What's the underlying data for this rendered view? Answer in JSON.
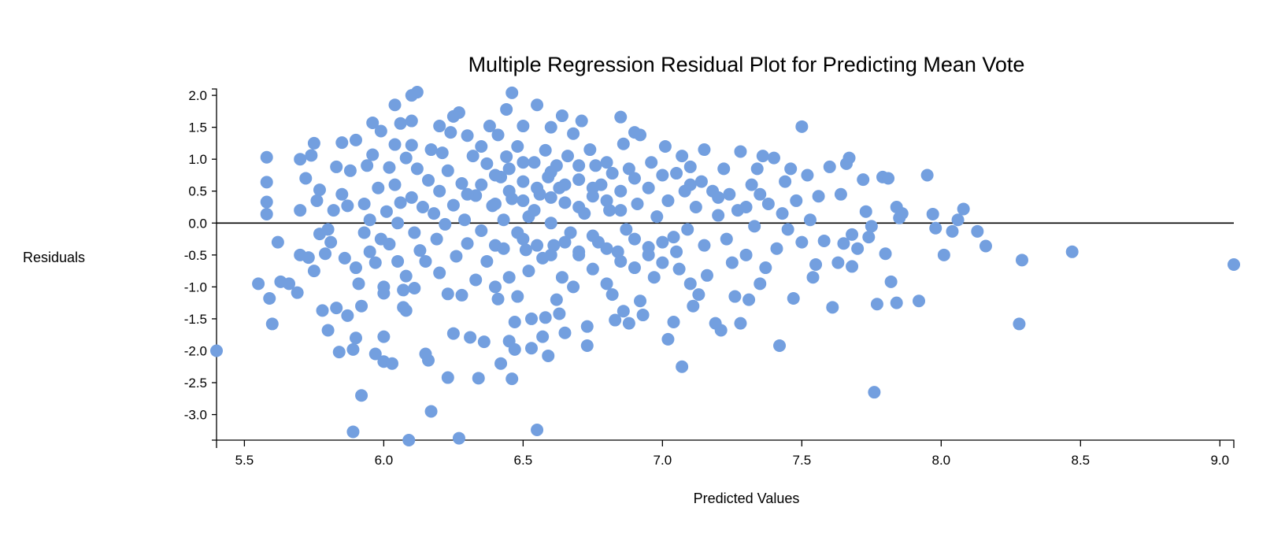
{
  "chart_data": {
    "type": "scatter",
    "title": "Multiple Regression Residual Plot for Predicting Mean Vote",
    "xlabel": "Predicted Values",
    "ylabel": "Residuals",
    "xlim": [
      5.4,
      9.05
    ],
    "ylim": [
      -3.4,
      2.1
    ],
    "x_ticks": [
      "5.5",
      "6.0",
      "6.5",
      "7.0",
      "7.5",
      "8.0",
      "8.5",
      "9.0"
    ],
    "y_ticks": [
      "2.0",
      "1.5",
      "1.0",
      "0.5",
      "0.0",
      "-0.5",
      "-1.0",
      "-1.5",
      "-2.0",
      "-2.5",
      "-3.0"
    ],
    "reference_line": 0,
    "grid": false,
    "point_color": "#739fdf",
    "points": [
      [
        5.4,
        -2.0
      ],
      [
        5.55,
        -0.95
      ],
      [
        5.58,
        1.03
      ],
      [
        5.58,
        0.64
      ],
      [
        5.58,
        0.33
      ],
      [
        5.58,
        0.14
      ],
      [
        5.59,
        -1.18
      ],
      [
        5.6,
        -1.58
      ],
      [
        5.62,
        -0.3
      ],
      [
        5.63,
        -0.92
      ],
      [
        5.66,
        -0.95
      ],
      [
        5.69,
        -1.09
      ],
      [
        5.7,
        1.0
      ],
      [
        5.7,
        0.2
      ],
      [
        5.7,
        -0.5
      ],
      [
        5.72,
        0.7
      ],
      [
        5.73,
        -0.54
      ],
      [
        5.74,
        1.06
      ],
      [
        5.75,
        1.25
      ],
      [
        5.75,
        -0.75
      ],
      [
        5.76,
        0.35
      ],
      [
        5.77,
        0.52
      ],
      [
        5.77,
        -0.17
      ],
      [
        5.78,
        -1.37
      ],
      [
        5.79,
        -0.48
      ],
      [
        5.8,
        -1.68
      ],
      [
        5.8,
        -0.1
      ],
      [
        5.81,
        -0.3
      ],
      [
        5.82,
        0.2
      ],
      [
        5.83,
        0.88
      ],
      [
        5.83,
        -1.33
      ],
      [
        5.84,
        -2.02
      ],
      [
        5.85,
        1.26
      ],
      [
        5.85,
        0.45
      ],
      [
        5.86,
        -0.55
      ],
      [
        5.87,
        0.27
      ],
      [
        5.87,
        -1.45
      ],
      [
        5.88,
        0.82
      ],
      [
        5.89,
        -3.27
      ],
      [
        5.89,
        -1.98
      ],
      [
        5.9,
        1.3
      ],
      [
        5.9,
        -0.7
      ],
      [
        5.9,
        -1.8
      ],
      [
        5.91,
        -0.95
      ],
      [
        5.92,
        -1.3
      ],
      [
        5.92,
        -2.7
      ],
      [
        5.93,
        0.3
      ],
      [
        5.93,
        -0.15
      ],
      [
        5.94,
        0.9
      ],
      [
        5.95,
        0.05
      ],
      [
        5.95,
        -0.45
      ],
      [
        5.96,
        1.57
      ],
      [
        5.96,
        1.07
      ],
      [
        5.97,
        -2.05
      ],
      [
        5.97,
        -0.62
      ],
      [
        5.98,
        0.55
      ],
      [
        5.99,
        1.44
      ],
      [
        5.99,
        -0.25
      ],
      [
        6.0,
        -1.0
      ],
      [
        6.0,
        -1.1
      ],
      [
        6.0,
        -1.78
      ],
      [
        6.0,
        -2.17
      ],
      [
        6.01,
        0.18
      ],
      [
        6.02,
        0.87
      ],
      [
        6.02,
        -0.33
      ],
      [
        6.03,
        -2.2
      ],
      [
        6.04,
        1.85
      ],
      [
        6.04,
        1.23
      ],
      [
        6.04,
        0.6
      ],
      [
        6.05,
        0.0
      ],
      [
        6.05,
        -0.6
      ],
      [
        6.06,
        1.56
      ],
      [
        6.06,
        0.32
      ],
      [
        6.07,
        -1.05
      ],
      [
        6.07,
        -1.32
      ],
      [
        6.08,
        1.02
      ],
      [
        6.08,
        -0.83
      ],
      [
        6.08,
        -1.37
      ],
      [
        6.09,
        -3.4
      ],
      [
        6.1,
        2.0
      ],
      [
        6.1,
        1.6
      ],
      [
        6.1,
        1.22
      ],
      [
        6.1,
        0.4
      ],
      [
        6.11,
        -0.15
      ],
      [
        6.11,
        -1.02
      ],
      [
        6.12,
        2.05
      ],
      [
        6.12,
        0.85
      ],
      [
        6.13,
        -0.43
      ],
      [
        6.14,
        0.25
      ],
      [
        6.15,
        -0.6
      ],
      [
        6.15,
        -2.05
      ],
      [
        6.16,
        0.67
      ],
      [
        6.16,
        -2.15
      ],
      [
        6.17,
        1.15
      ],
      [
        6.17,
        -2.95
      ],
      [
        6.18,
        0.15
      ],
      [
        6.19,
        -0.25
      ],
      [
        6.2,
        1.52
      ],
      [
        6.2,
        0.5
      ],
      [
        6.2,
        -0.78
      ],
      [
        6.21,
        1.1
      ],
      [
        6.22,
        -0.02
      ],
      [
        6.23,
        0.82
      ],
      [
        6.23,
        -1.11
      ],
      [
        6.23,
        -2.42
      ],
      [
        6.24,
        1.42
      ],
      [
        6.25,
        1.67
      ],
      [
        6.25,
        0.28
      ],
      [
        6.25,
        -1.73
      ],
      [
        6.26,
        -0.52
      ],
      [
        6.27,
        1.73
      ],
      [
        6.27,
        -3.37
      ],
      [
        6.28,
        0.62
      ],
      [
        6.28,
        -1.13
      ],
      [
        6.29,
        0.05
      ],
      [
        6.3,
        1.37
      ],
      [
        6.3,
        -0.32
      ],
      [
        6.31,
        -1.79
      ],
      [
        6.32,
        1.05
      ],
      [
        6.33,
        0.43
      ],
      [
        6.33,
        -0.89
      ],
      [
        6.34,
        -2.43
      ],
      [
        6.35,
        1.2
      ],
      [
        6.35,
        -0.12
      ],
      [
        6.36,
        -1.86
      ],
      [
        6.37,
        0.93
      ],
      [
        6.37,
        -0.6
      ],
      [
        6.38,
        1.52
      ],
      [
        6.39,
        0.27
      ],
      [
        6.4,
        -0.35
      ],
      [
        6.4,
        -1.0
      ],
      [
        6.41,
        1.38
      ],
      [
        6.41,
        -1.19
      ],
      [
        6.42,
        0.72
      ],
      [
        6.42,
        -2.2
      ],
      [
        6.43,
        0.05
      ],
      [
        6.43,
        -0.4
      ],
      [
        6.44,
        1.78
      ],
      [
        6.44,
        1.04
      ],
      [
        6.45,
        -0.85
      ],
      [
        6.45,
        -1.85
      ],
      [
        6.46,
        2.04
      ],
      [
        6.46,
        0.38
      ],
      [
        6.46,
        -2.44
      ],
      [
        6.47,
        -1.55
      ],
      [
        6.47,
        -1.98
      ],
      [
        6.48,
        1.2
      ],
      [
        6.48,
        -0.15
      ],
      [
        6.48,
        -1.15
      ],
      [
        6.5,
        1.52
      ],
      [
        6.5,
        0.65
      ],
      [
        6.51,
        -0.42
      ],
      [
        6.52,
        0.1
      ],
      [
        6.52,
        -0.75
      ],
      [
        6.53,
        -1.5
      ],
      [
        6.53,
        -1.96
      ],
      [
        6.54,
        0.95
      ],
      [
        6.54,
        0.2
      ],
      [
        6.55,
        1.85
      ],
      [
        6.55,
        -3.24
      ],
      [
        6.56,
        0.45
      ],
      [
        6.57,
        -0.55
      ],
      [
        6.57,
        -1.78
      ],
      [
        6.58,
        1.14
      ],
      [
        6.58,
        -1.48
      ],
      [
        6.59,
        0.72
      ],
      [
        6.59,
        -2.08
      ],
      [
        6.6,
        1.5
      ],
      [
        6.6,
        0.0
      ],
      [
        6.61,
        -0.35
      ],
      [
        6.62,
        0.9
      ],
      [
        6.62,
        -1.2
      ],
      [
        6.63,
        0.55
      ],
      [
        6.63,
        -1.42
      ],
      [
        6.64,
        1.68
      ],
      [
        6.64,
        -0.85
      ],
      [
        6.65,
        0.32
      ],
      [
        6.65,
        -1.72
      ],
      [
        6.66,
        1.05
      ],
      [
        6.67,
        -0.15
      ],
      [
        6.68,
        1.4
      ],
      [
        6.68,
        -1.0
      ],
      [
        6.7,
        0.68
      ],
      [
        6.7,
        -0.5
      ],
      [
        6.71,
        1.6
      ],
      [
        6.72,
        0.15
      ],
      [
        6.73,
        -1.62
      ],
      [
        6.73,
        -1.92
      ],
      [
        6.74,
        1.15
      ],
      [
        6.75,
        0.42
      ],
      [
        6.75,
        -0.72
      ],
      [
        6.76,
        0.9
      ],
      [
        6.77,
        -0.3
      ],
      [
        6.78,
        0.6
      ],
      [
        6.8,
        -0.95
      ],
      [
        6.81,
        0.2
      ],
      [
        6.82,
        0.78
      ],
      [
        6.82,
        -1.12
      ],
      [
        6.83,
        -1.52
      ],
      [
        6.84,
        -0.45
      ],
      [
        6.85,
        1.66
      ],
      [
        6.85,
        0.5
      ],
      [
        6.86,
        1.24
      ],
      [
        6.86,
        -1.38
      ],
      [
        6.87,
        -0.1
      ],
      [
        6.88,
        0.85
      ],
      [
        6.88,
        -1.57
      ],
      [
        6.9,
        1.42
      ],
      [
        6.9,
        -0.7
      ],
      [
        6.91,
        0.3
      ],
      [
        6.92,
        1.38
      ],
      [
        6.92,
        -1.22
      ],
      [
        6.93,
        -1.44
      ],
      [
        6.95,
        0.55
      ],
      [
        6.95,
        -0.38
      ],
      [
        6.96,
        0.95
      ],
      [
        6.97,
        -0.85
      ],
      [
        6.98,
        0.1
      ],
      [
        7.0,
        -0.62
      ],
      [
        7.01,
        1.2
      ],
      [
        7.02,
        0.35
      ],
      [
        7.02,
        -1.82
      ],
      [
        7.04,
        -0.22
      ],
      [
        7.04,
        -1.55
      ],
      [
        7.05,
        0.78
      ],
      [
        7.06,
        -0.72
      ],
      [
        7.07,
        1.05
      ],
      [
        7.07,
        -2.25
      ],
      [
        7.08,
        0.5
      ],
      [
        7.09,
        -0.1
      ],
      [
        7.1,
        0.88
      ],
      [
        7.1,
        -0.95
      ],
      [
        7.11,
        -1.3
      ],
      [
        7.12,
        0.25
      ],
      [
        7.13,
        -1.12
      ],
      [
        7.14,
        0.65
      ],
      [
        7.15,
        1.15
      ],
      [
        7.15,
        -0.35
      ],
      [
        7.16,
        -0.82
      ],
      [
        7.18,
        0.5
      ],
      [
        7.19,
        -1.57
      ],
      [
        7.2,
        0.12
      ],
      [
        7.21,
        -1.68
      ],
      [
        7.22,
        0.85
      ],
      [
        7.23,
        -0.25
      ],
      [
        7.24,
        0.45
      ],
      [
        7.25,
        -0.62
      ],
      [
        7.26,
        -1.15
      ],
      [
        7.27,
        0.2
      ],
      [
        7.28,
        1.12
      ],
      [
        7.28,
        -1.57
      ],
      [
        7.3,
        -0.5
      ],
      [
        7.31,
        -1.2
      ],
      [
        7.32,
        0.6
      ],
      [
        7.33,
        -0.05
      ],
      [
        7.34,
        0.85
      ],
      [
        7.35,
        -0.95
      ],
      [
        7.36,
        1.05
      ],
      [
        7.37,
        -0.7
      ],
      [
        7.38,
        0.3
      ],
      [
        7.4,
        1.02
      ],
      [
        7.41,
        -0.4
      ],
      [
        7.42,
        -1.92
      ],
      [
        7.43,
        0.15
      ],
      [
        7.44,
        0.65
      ],
      [
        7.45,
        -0.1
      ],
      [
        7.46,
        0.85
      ],
      [
        7.47,
        -1.18
      ],
      [
        7.48,
        0.35
      ],
      [
        7.5,
        1.51
      ],
      [
        7.5,
        -0.3
      ],
      [
        7.52,
        0.75
      ],
      [
        7.53,
        0.05
      ],
      [
        7.54,
        -0.85
      ],
      [
        7.55,
        -0.65
      ],
      [
        7.56,
        0.42
      ],
      [
        7.58,
        -0.28
      ],
      [
        7.6,
        0.88
      ],
      [
        7.61,
        -1.32
      ],
      [
        7.63,
        -0.62
      ],
      [
        7.64,
        0.45
      ],
      [
        7.65,
        -0.32
      ],
      [
        7.66,
        0.93
      ],
      [
        7.67,
        1.02
      ],
      [
        7.68,
        -0.68
      ],
      [
        7.68,
        -0.18
      ],
      [
        7.7,
        -0.4
      ],
      [
        7.72,
        0.68
      ],
      [
        7.73,
        0.18
      ],
      [
        7.74,
        -0.22
      ],
      [
        7.75,
        -0.05
      ],
      [
        7.76,
        -2.65
      ],
      [
        7.77,
        -1.27
      ],
      [
        7.79,
        0.72
      ],
      [
        7.8,
        -0.48
      ],
      [
        7.81,
        0.7
      ],
      [
        7.82,
        -0.92
      ],
      [
        7.84,
        -1.25
      ],
      [
        7.84,
        0.25
      ],
      [
        7.85,
        0.08
      ],
      [
        7.86,
        0.15
      ],
      [
        7.92,
        -1.22
      ],
      [
        7.95,
        0.75
      ],
      [
        7.97,
        0.14
      ],
      [
        7.98,
        -0.08
      ],
      [
        8.01,
        -0.5
      ],
      [
        8.04,
        -0.13
      ],
      [
        8.06,
        0.05
      ],
      [
        8.08,
        0.22
      ],
      [
        8.13,
        -0.13
      ],
      [
        8.16,
        -0.36
      ],
      [
        8.28,
        -1.58
      ],
      [
        8.29,
        -0.58
      ],
      [
        8.47,
        -0.45
      ],
      [
        9.05,
        -0.65
      ],
      [
        6.3,
        0.45
      ],
      [
        6.35,
        0.6
      ],
      [
        6.4,
        0.3
      ],
      [
        6.45,
        0.5
      ],
      [
        6.5,
        0.35
      ],
      [
        6.55,
        0.55
      ],
      [
        6.6,
        0.4
      ],
      [
        6.65,
        0.6
      ],
      [
        6.7,
        0.25
      ],
      [
        6.75,
        0.55
      ],
      [
        6.8,
        0.35
      ],
      [
        6.85,
        0.2
      ],
      [
        6.5,
        -0.25
      ],
      [
        6.55,
        -0.35
      ],
      [
        6.6,
        -0.5
      ],
      [
        6.65,
        -0.3
      ],
      [
        6.7,
        -0.45
      ],
      [
        6.75,
        -0.2
      ],
      [
        6.8,
        -0.4
      ],
      [
        6.85,
        -0.6
      ],
      [
        6.9,
        -0.25
      ],
      [
        6.95,
        -0.5
      ],
      [
        7.0,
        -0.3
      ],
      [
        7.05,
        -0.45
      ],
      [
        6.4,
        0.75
      ],
      [
        6.45,
        0.85
      ],
      [
        6.5,
        0.95
      ],
      [
        6.6,
        0.8
      ],
      [
        6.7,
        0.9
      ],
      [
        6.8,
        0.95
      ],
      [
        6.9,
        0.7
      ],
      [
        7.0,
        0.75
      ],
      [
        7.1,
        0.6
      ],
      [
        7.2,
        0.4
      ],
      [
        7.3,
        0.25
      ],
      [
        7.35,
        0.45
      ]
    ]
  }
}
